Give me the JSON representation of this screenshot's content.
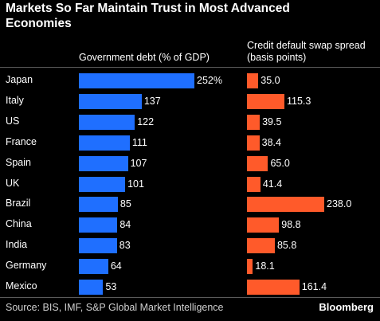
{
  "chart_data": {
    "type": "bar",
    "orientation": "horizontal",
    "title": "Markets So Far Maintain Trust in Most Advanced Economies",
    "categories": [
      "Japan",
      "Italy",
      "US",
      "France",
      "Spain",
      "UK",
      "Brazil",
      "China",
      "India",
      "Germany",
      "Mexico"
    ],
    "series": [
      {
        "name": "Government debt (% of GDP)",
        "values": [
          252,
          137,
          122,
          111,
          107,
          101,
          85,
          84,
          83,
          64,
          53
        ],
        "value_labels": [
          "252%",
          "137",
          "122",
          "111",
          "107",
          "101",
          "85",
          "84",
          "83",
          "64",
          "53"
        ],
        "color": "#1f6fff"
      },
      {
        "name": "Credit default swap spread (basis points)",
        "values": [
          35.0,
          115.3,
          39.5,
          38.4,
          65.0,
          41.4,
          238.0,
          98.8,
          85.8,
          18.1,
          161.4
        ],
        "value_labels": [
          "35.0",
          "115.3",
          "39.5",
          "38.4",
          "65.0",
          "41.4",
          "238.0",
          "98.8",
          "85.8",
          "18.1",
          "161.4"
        ],
        "color": "#ff5a2a"
      }
    ],
    "legend": "none",
    "grid": false
  },
  "headers": {
    "debt": "Government debt (% of GDP)",
    "cds_line1": "Credit default swap spread",
    "cds_line2": "(basis points)"
  },
  "footer": {
    "source": "Source: BIS, IMF, S&P Global Market Intelligence",
    "brand": "Bloomberg"
  },
  "colors": {
    "background": "#000000",
    "debt_bar": "#1f6fff",
    "cds_bar": "#ff5a2a",
    "text": "#ffffff"
  }
}
